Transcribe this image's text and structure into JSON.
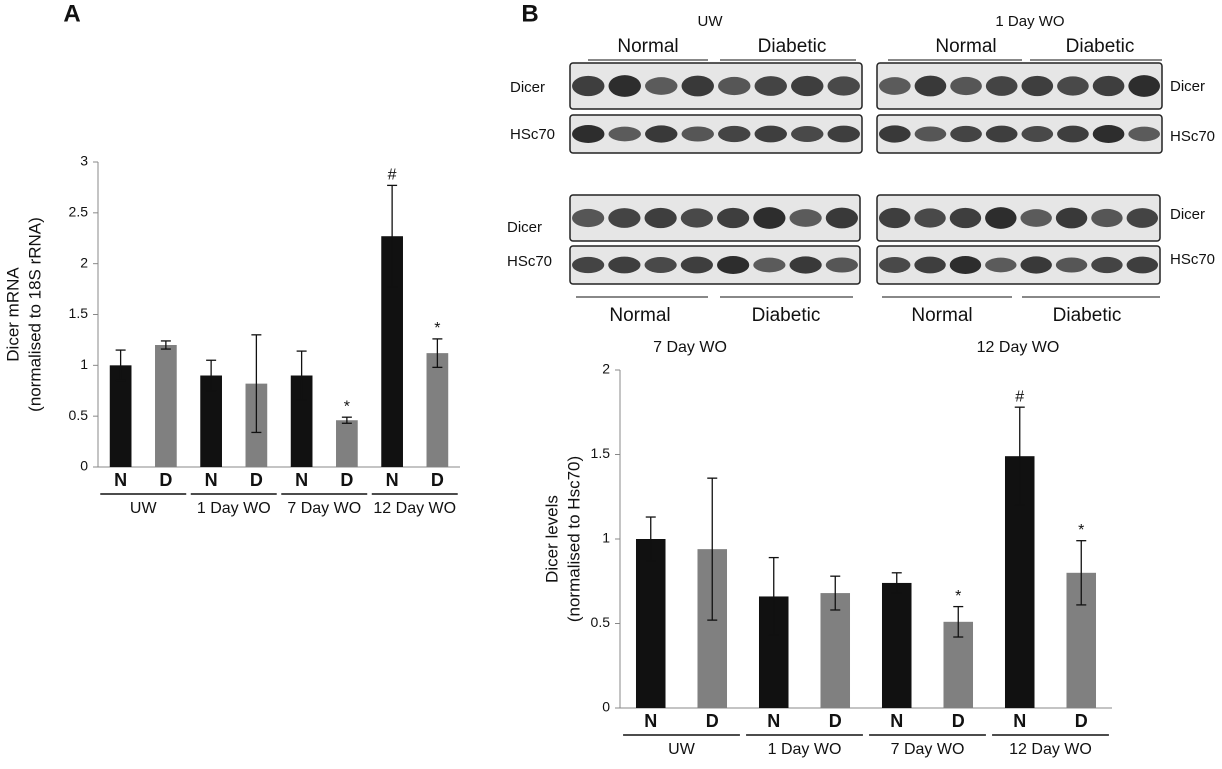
{
  "panel_labels": [
    "A",
    "B"
  ],
  "blots": {
    "top_groups": [
      "UW",
      "1 Day  WO"
    ],
    "top_subgroups": [
      "Normal",
      "Diabetic",
      "Normal",
      "Diabetic"
    ],
    "row_labels": [
      "Dicer",
      "HSc70"
    ],
    "bottom_subgroups": [
      "Normal",
      "Diabetic",
      "Normal",
      "Diabetic"
    ],
    "bottom_groups": [
      "7 Day WO",
      "12 Day WO"
    ]
  },
  "chart_data": [
    {
      "type": "bar",
      "y_label": [
        "Dicer mRNA",
        "(normalised to 18S rRNA)"
      ],
      "categories": [
        "N",
        "D",
        "N",
        "D",
        "N",
        "D",
        "N",
        "D"
      ],
      "groups": [
        "UW",
        "1 Day WO",
        "7 Day WO",
        "12 Day WO"
      ],
      "values": [
        1.0,
        1.2,
        0.9,
        0.82,
        0.9,
        0.46,
        2.27,
        1.12
      ],
      "errors": [
        0.15,
        0.04,
        0.15,
        0.48,
        0.24,
        0.03,
        0.5,
        0.14
      ],
      "markers": [
        null,
        null,
        null,
        null,
        null,
        "*",
        "#",
        "*"
      ],
      "colors": [
        "#111111",
        "#808080",
        "#111111",
        "#808080",
        "#111111",
        "#808080",
        "#111111",
        "#808080"
      ],
      "ylim": [
        0,
        3
      ],
      "yticks": [
        0,
        0.5,
        1,
        1.5,
        2,
        2.5,
        3
      ]
    },
    {
      "type": "bar",
      "y_label": [
        "Dicer levels",
        "(normalised to Hsc70)"
      ],
      "categories": [
        "N",
        "D",
        "N",
        "D",
        "N",
        "D",
        "N",
        "D"
      ],
      "groups": [
        "UW",
        "1 Day WO",
        "7 Day WO",
        "12 Day WO"
      ],
      "values": [
        1.0,
        0.94,
        0.66,
        0.68,
        0.74,
        0.51,
        1.49,
        0.8
      ],
      "errors": [
        0.13,
        0.42,
        0.23,
        0.1,
        0.06,
        0.09,
        0.29,
        0.19
      ],
      "markers": [
        null,
        null,
        null,
        null,
        null,
        "*",
        "#",
        "*"
      ],
      "colors": [
        "#111111",
        "#808080",
        "#111111",
        "#808080",
        "#111111",
        "#808080",
        "#111111",
        "#808080"
      ],
      "ylim": [
        0,
        2
      ],
      "yticks": [
        0,
        0.5,
        1,
        1.5,
        2
      ]
    }
  ]
}
